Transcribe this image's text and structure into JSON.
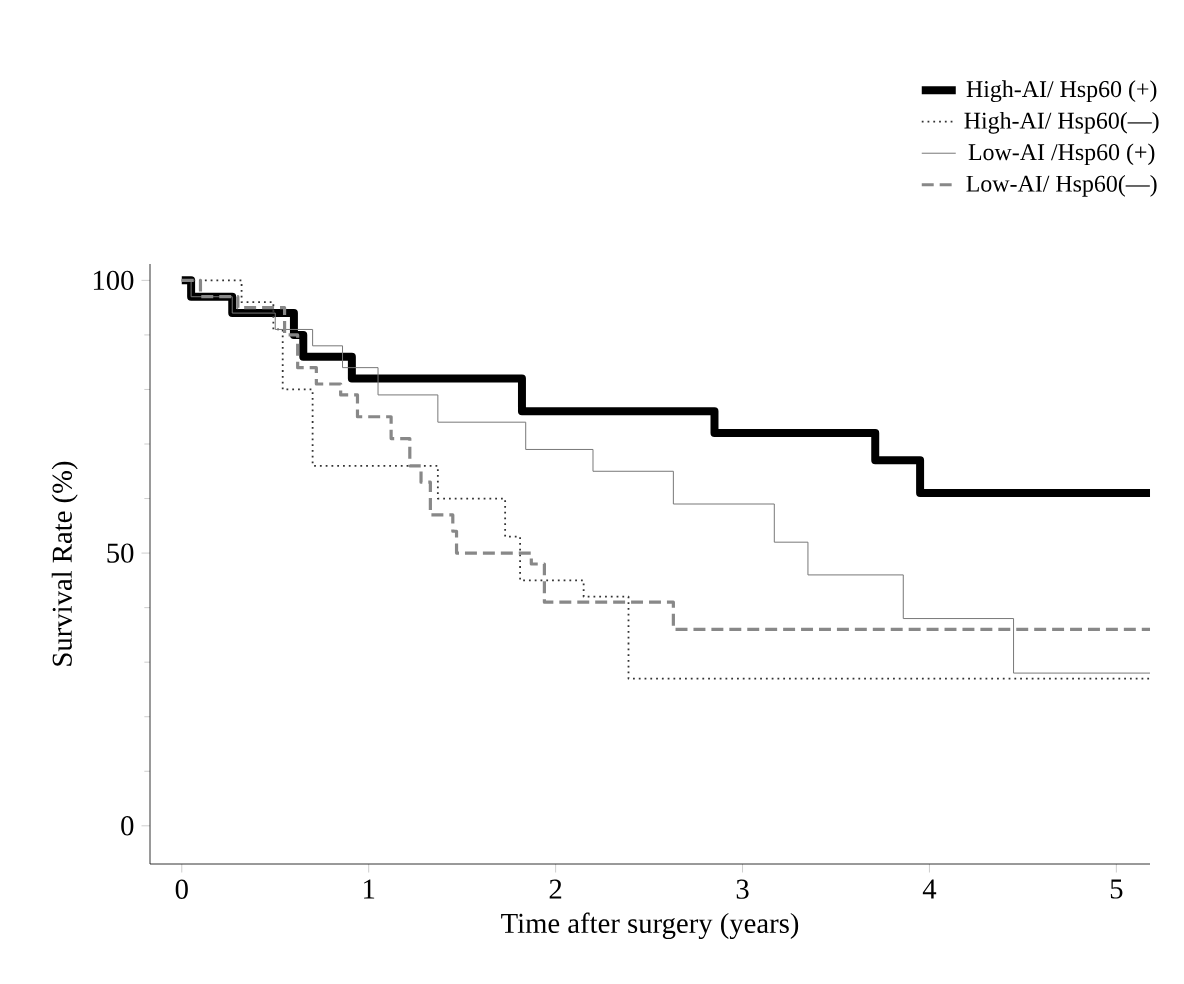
{
  "chart_data": {
    "type": "step",
    "xlabel": "Time after surgery (years)",
    "ylabel": "Survival Rate (%)",
    "xlim": [
      -0.17,
      5.18
    ],
    "ylim": [
      -7,
      103
    ],
    "xticks": [
      0,
      1,
      2,
      3,
      4,
      5
    ],
    "yticks": [
      0,
      50,
      100
    ],
    "legend": "top right",
    "grid": false,
    "series": [
      {
        "name": "High-AI/ Hsp60 (+)",
        "color": "#000000",
        "line_style": "solid",
        "x": [
          0,
          0.05,
          0.27,
          0.6,
          0.65,
          0.91,
          1.82,
          2.85,
          3.71,
          3.95,
          5.18
        ],
        "values": [
          100,
          97,
          94,
          90,
          86,
          82,
          76,
          72,
          67,
          61,
          61
        ]
      },
      {
        "name": "High-AI/ Hsp60(—)",
        "color": "#333333",
        "line_style": "dotted",
        "x": [
          0,
          0.32,
          0.49,
          0.54,
          0.7,
          1.37,
          1.73,
          1.81,
          2.15,
          2.39,
          5.18
        ],
        "values": [
          100,
          96,
          91,
          80,
          66,
          60,
          53,
          45,
          42,
          27,
          27
        ]
      },
      {
        "name": "Low-AI /Hsp60 (+)",
        "color": "#777777",
        "line_style": "solid",
        "x": [
          0,
          0.05,
          0.27,
          0.5,
          0.7,
          0.86,
          1.05,
          1.37,
          1.84,
          2.2,
          2.63,
          3.17,
          3.35,
          3.86,
          4.45,
          5.18
        ],
        "values": [
          100,
          97,
          94,
          91,
          88,
          84,
          79,
          74,
          69,
          65,
          59,
          52,
          46,
          38,
          28,
          28
        ]
      },
      {
        "name": "Low-AI/ Hsp60(—)",
        "color": "#888888",
        "line_style": "dashed",
        "x": [
          0,
          0.1,
          0.3,
          0.55,
          0.62,
          0.72,
          0.85,
          0.94,
          1.12,
          1.22,
          1.28,
          1.33,
          1.45,
          1.47,
          1.87,
          1.94,
          2.63,
          5.18
        ],
        "values": [
          100,
          97,
          95,
          90,
          84,
          81,
          79,
          75,
          71,
          66,
          63,
          57,
          54,
          50,
          48,
          41,
          36,
          36
        ]
      }
    ]
  }
}
